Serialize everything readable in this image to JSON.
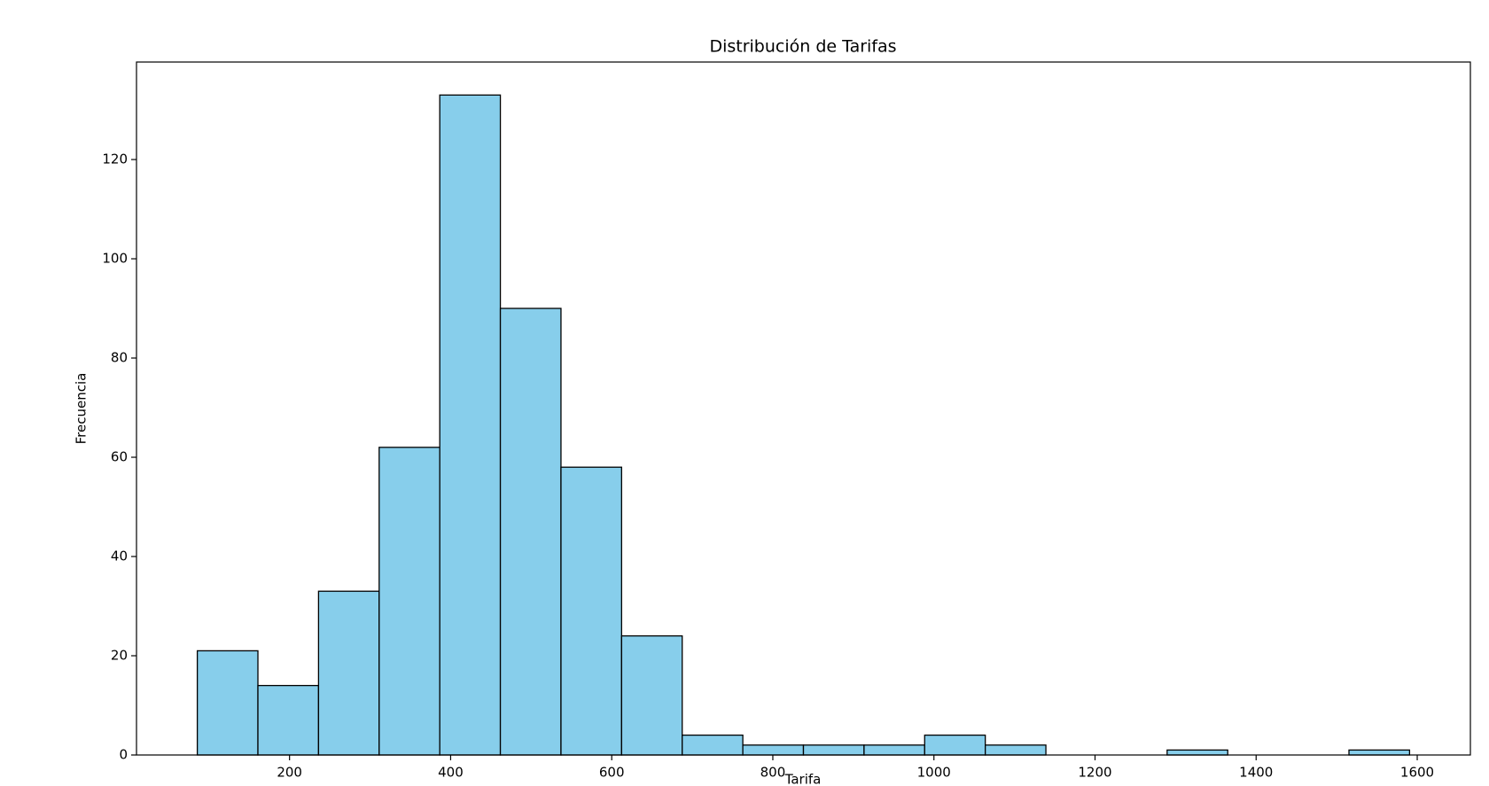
{
  "chart_data": {
    "type": "histogram",
    "title": "Distribución de Tarifas",
    "x_label": "Tarifa",
    "y_label": "Frecuencia",
    "bins": [
      85.5,
      160.75,
      236,
      311.25,
      386.5,
      461.75,
      537,
      612.25,
      687.5,
      762.75,
      838,
      913.25,
      988.5,
      1063.75,
      1139,
      1214.25,
      1289.5,
      1364.75,
      1440,
      1515.25,
      1590.5
    ],
    "values": [
      21,
      14,
      33,
      62,
      133,
      90,
      58,
      24,
      4,
      2,
      2,
      2,
      4,
      2,
      0,
      0,
      1,
      0,
      0,
      1
    ],
    "color": "#87ceeb",
    "edgecolor": "#000000",
    "xlim": [
      10,
      1666
    ],
    "ylim": [
      0,
      139.65
    ],
    "xticks": [
      200,
      400,
      600,
      800,
      1000,
      1200,
      1400,
      1600
    ],
    "yticks": [
      0,
      20,
      40,
      60,
      80,
      100,
      120
    ],
    "grid": false
  }
}
